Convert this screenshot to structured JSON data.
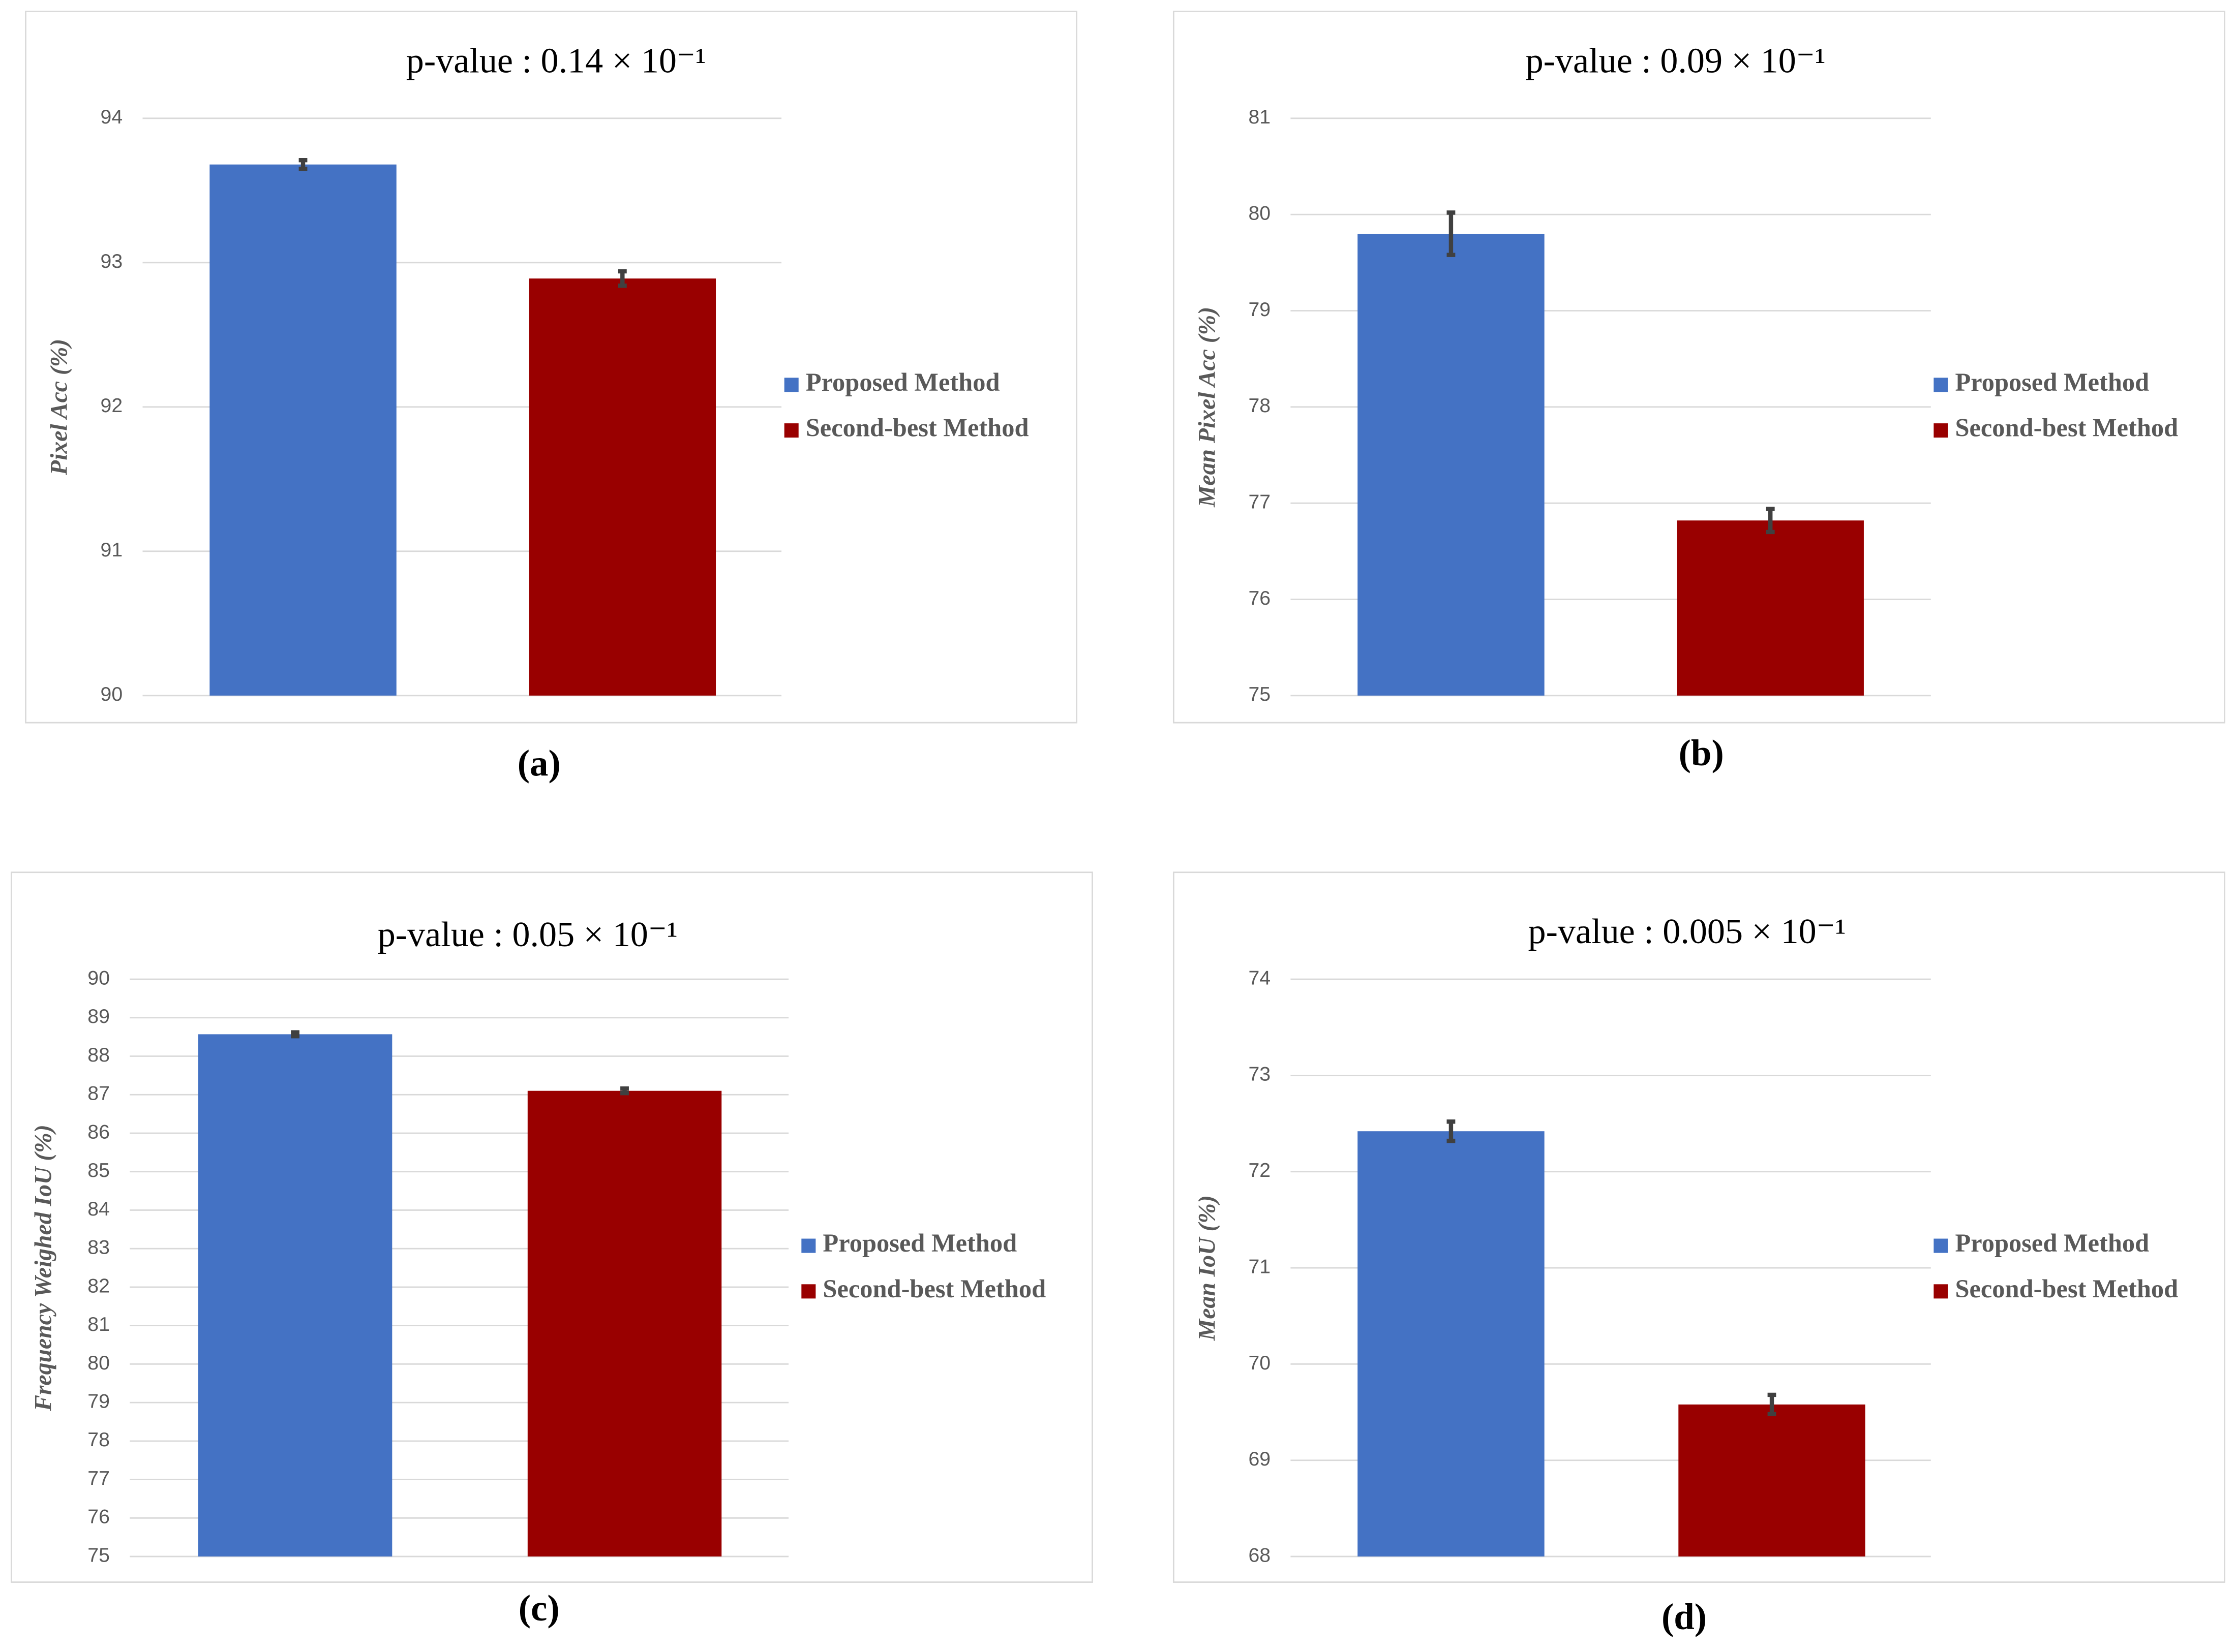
{
  "chart_data": [
    {
      "type": "bar",
      "title": "p-value : 0.14 × 10⁻¹",
      "ylabel": "Pixel Acc (%)",
      "caption": "(a)",
      "ylim": [
        90,
        94
      ],
      "yticks": [
        90,
        91,
        92,
        93,
        94
      ],
      "grid": true,
      "series": [
        {
          "name": "Proposed Method",
          "color": "#4472c4",
          "values": [
            93.68
          ],
          "errors": [
            0.03
          ]
        },
        {
          "name": "Second-best Method",
          "color": "#990000",
          "values": [
            92.89
          ],
          "errors": [
            0.05
          ]
        }
      ]
    },
    {
      "type": "bar",
      "title": "p-value : 0.09 × 10⁻¹",
      "ylabel": "Mean Pixel Acc (%)",
      "caption": "(b)",
      "ylim": [
        75,
        81
      ],
      "yticks": [
        75,
        76,
        77,
        78,
        79,
        80,
        81
      ],
      "grid": true,
      "series": [
        {
          "name": "Proposed Method",
          "color": "#4472c4",
          "values": [
            79.8
          ],
          "errors": [
            0.22
          ]
        },
        {
          "name": "Second-best Method",
          "color": "#990000",
          "values": [
            76.82
          ],
          "errors": [
            0.12
          ]
        }
      ]
    },
    {
      "type": "bar",
      "title": "p-value : 0.05 × 10⁻¹",
      "ylabel": "Frequency Weighed IoU (%)",
      "caption": "(c)",
      "ylim": [
        75,
        90
      ],
      "yticks": [
        75,
        76,
        77,
        78,
        79,
        80,
        81,
        82,
        83,
        84,
        85,
        86,
        87,
        88,
        89,
        90
      ],
      "grid": true,
      "series": [
        {
          "name": "Proposed Method",
          "color": "#4472c4",
          "values": [
            88.57
          ],
          "errors": [
            0.05
          ]
        },
        {
          "name": "Second-best Method",
          "color": "#990000",
          "values": [
            87.1
          ],
          "errors": [
            0.06
          ]
        }
      ]
    },
    {
      "type": "bar",
      "title": "p-value : 0.005 × 10⁻¹",
      "ylabel": "Mean IoU (%)",
      "caption": "(d)",
      "ylim": [
        68,
        74
      ],
      "yticks": [
        68,
        69,
        70,
        71,
        72,
        73,
        74
      ],
      "grid": true,
      "series": [
        {
          "name": "Proposed Method",
          "color": "#4472c4",
          "values": [
            72.42
          ],
          "errors": [
            0.1
          ]
        },
        {
          "name": "Second-best Method",
          "color": "#990000",
          "values": [
            69.58
          ],
          "errors": [
            0.1
          ]
        }
      ]
    }
  ]
}
